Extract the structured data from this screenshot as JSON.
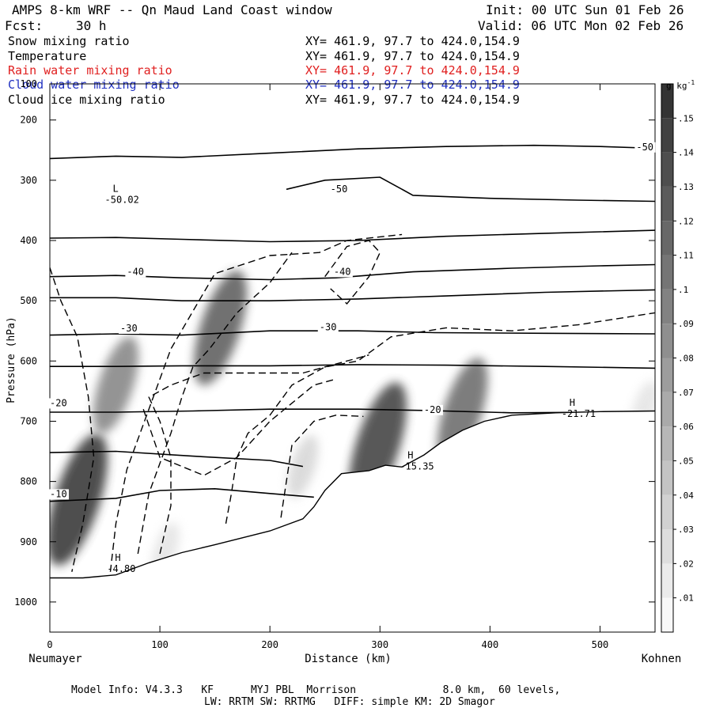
{
  "header": {
    "title": "AMPS 8-km WRF -- Qn Maud Land Coast window",
    "init": "Init: 00 UTC Sun 01 Feb 26",
    "fcst_label": "Fcst:",
    "fcst_value": "30 h",
    "valid": "Valid: 06 UTC Mon 02 Feb 26"
  },
  "fields": [
    {
      "name": "Snow mixing ratio",
      "xy": "XY= 461.9, 97.7 to 424.0,154.9",
      "color": "#000000"
    },
    {
      "name": "Temperature",
      "xy": "XY= 461.9, 97.7 to 424.0,154.9",
      "color": "#000000"
    },
    {
      "name": "Rain water mixing ratio",
      "xy": "XY= 461.9, 97.7 to 424.0,154.9",
      "color": "#e02020"
    },
    {
      "name": "Cloud water mixing ratio",
      "xy": "XY= 461.9, 97.7 to 424.0,154.9",
      "color": "#2030c0"
    },
    {
      "name": "Cloud ice mixing ratio",
      "xy": "XY= 461.9, 97.7 to 424.0,154.9",
      "color": "#000000"
    }
  ],
  "footer": {
    "line1": "Model Info: V4.3.3   KF      MYJ PBL  Morrison              8.0 km,  60 levels,",
    "line2": "LW: RRTM SW: RRTMG   DIFF: simple KM: 2D Smagor"
  },
  "chart_data": {
    "type": "cross-section contour",
    "xlabel": "Distance (km)",
    "ylabel": "Pressure (hPa)",
    "x_left_label": "Neumayer",
    "x_right_label": "Kohnen",
    "xlim": [
      0,
      550
    ],
    "ylim": [
      1050,
      140
    ],
    "x_ticks": [
      0,
      100,
      200,
      300,
      400,
      500
    ],
    "y_ticks": [
      200,
      300,
      400,
      500,
      600,
      700,
      800,
      900,
      1000
    ],
    "colorbar": {
      "unit_label": "g kg",
      "unit_exp": "-1",
      "ticks": [
        ".01",
        ".02",
        ".03",
        ".04",
        ".05",
        ".06",
        ".07",
        ".08",
        ".09",
        ".1",
        ".11",
        ".12",
        ".13",
        ".14",
        ".15"
      ],
      "range": [
        0,
        0.16
      ]
    },
    "temperature_labels": [
      {
        "text": "-50",
        "x": 533,
        "p": 250
      },
      {
        "text": "-50",
        "x": 255,
        "p": 320
      },
      {
        "text": "-40",
        "x": 70,
        "p": 457
      },
      {
        "text": "-40",
        "x": 258,
        "p": 457
      },
      {
        "text": "-30",
        "x": 64,
        "p": 551
      },
      {
        "text": "-30",
        "x": 245,
        "p": 549
      },
      {
        "text": "-20",
        "x": 0,
        "p": 675
      },
      {
        "text": "-20",
        "x": 340,
        "p": 686
      },
      {
        "text": "-10",
        "x": 0,
        "p": 826
      }
    ],
    "extrema": [
      {
        "kind": "L",
        "value": "-50.02",
        "x": 50,
        "p": 330
      },
      {
        "kind": "H",
        "value": "-4.80",
        "x": 52,
        "p": 942
      },
      {
        "kind": "H",
        "value": "-15.35",
        "x": 318,
        "p": 772
      },
      {
        "kind": "H",
        "value": "-21.71",
        "x": 465,
        "p": 685
      }
    ],
    "isotherms": [
      {
        "level": -50,
        "points": [
          [
            0,
            264
          ],
          [
            60,
            260
          ],
          [
            120,
            262
          ],
          [
            200,
            255
          ],
          [
            280,
            248
          ],
          [
            360,
            244
          ],
          [
            440,
            242
          ],
          [
            500,
            244
          ],
          [
            550,
            247
          ]
        ]
      },
      {
        "level": -50,
        "points": [
          [
            215,
            315
          ],
          [
            250,
            300
          ],
          [
            300,
            295
          ],
          [
            330,
            325
          ],
          [
            400,
            330
          ],
          [
            480,
            333
          ],
          [
            550,
            335
          ]
        ]
      },
      {
        "level": -45,
        "points": [
          [
            0,
            396
          ],
          [
            60,
            395
          ],
          [
            120,
            398
          ],
          [
            200,
            402
          ],
          [
            280,
            400
          ],
          [
            360,
            393
          ],
          [
            450,
            388
          ],
          [
            550,
            383
          ]
        ]
      },
      {
        "level": -40,
        "points": [
          [
            0,
            460
          ],
          [
            60,
            458
          ],
          [
            120,
            462
          ],
          [
            200,
            465
          ],
          [
            260,
            462
          ],
          [
            330,
            452
          ],
          [
            420,
            446
          ],
          [
            500,
            442
          ],
          [
            550,
            440
          ]
        ]
      },
      {
        "level": -35,
        "points": [
          [
            0,
            495
          ],
          [
            60,
            495
          ],
          [
            120,
            500
          ],
          [
            200,
            500
          ],
          [
            280,
            497
          ],
          [
            360,
            492
          ],
          [
            450,
            486
          ],
          [
            550,
            482
          ]
        ]
      },
      {
        "level": -30,
        "points": [
          [
            0,
            557
          ],
          [
            60,
            555
          ],
          [
            120,
            557
          ],
          [
            200,
            550
          ],
          [
            280,
            550
          ],
          [
            350,
            553
          ],
          [
            450,
            554
          ],
          [
            550,
            555
          ]
        ]
      },
      {
        "level": -25,
        "points": [
          [
            0,
            609
          ],
          [
            60,
            609
          ],
          [
            120,
            608
          ],
          [
            200,
            608
          ],
          [
            280,
            606
          ],
          [
            360,
            607
          ],
          [
            450,
            609
          ],
          [
            550,
            612
          ]
        ]
      },
      {
        "level": -20,
        "points": [
          [
            0,
            685
          ],
          [
            60,
            685
          ],
          [
            130,
            683
          ],
          [
            200,
            680
          ],
          [
            280,
            680
          ],
          [
            340,
            682
          ],
          [
            420,
            686
          ],
          [
            500,
            685
          ],
          [
            550,
            686
          ]
        ]
      },
      {
        "level": -15,
        "points": [
          [
            0,
            752
          ],
          [
            60,
            750
          ],
          [
            130,
            758
          ],
          [
            200,
            765
          ],
          [
            230,
            775
          ]
        ]
      },
      {
        "level": -10,
        "points": [
          [
            0,
            833
          ],
          [
            60,
            828
          ],
          [
            100,
            815
          ],
          [
            150,
            812
          ],
          [
            200,
            820
          ],
          [
            240,
            826
          ]
        ]
      }
    ],
    "terrain": [
      [
        0,
        960
      ],
      [
        30,
        960
      ],
      [
        60,
        955
      ],
      [
        90,
        935
      ],
      [
        120,
        918
      ],
      [
        150,
        905
      ],
      [
        200,
        882
      ],
      [
        230,
        862
      ],
      [
        240,
        842
      ],
      [
        250,
        815
      ],
      [
        265,
        787
      ],
      [
        290,
        782
      ],
      [
        305,
        773
      ],
      [
        320,
        776
      ],
      [
        340,
        756
      ],
      [
        355,
        736
      ],
      [
        375,
        715
      ],
      [
        395,
        700
      ],
      [
        420,
        690
      ],
      [
        460,
        686
      ],
      [
        500,
        684
      ],
      [
        550,
        683
      ]
    ],
    "snow_maxima": [
      {
        "x": 25,
        "p": 830,
        "value": 0.15
      },
      {
        "x": 60,
        "p": 640,
        "value": 0.09
      },
      {
        "x": 155,
        "p": 545,
        "value": 0.12
      },
      {
        "x": 298,
        "p": 740,
        "value": 0.14
      },
      {
        "x": 375,
        "p": 685,
        "value": 0.11
      },
      {
        "x": 230,
        "p": 775,
        "value": 0.03
      },
      {
        "x": 105,
        "p": 915,
        "value": 0.02
      },
      {
        "x": 540,
        "p": 680,
        "value": 0.02
      }
    ],
    "cloud_ice_contours": [
      {
        "points": [
          [
            0,
            445
          ],
          [
            10,
            500
          ],
          [
            25,
            560
          ],
          [
            35,
            660
          ],
          [
            40,
            760
          ],
          [
            30,
            870
          ],
          [
            20,
            950
          ]
        ]
      },
      {
        "points": [
          [
            55,
            950
          ],
          [
            60,
            870
          ],
          [
            70,
            780
          ],
          [
            90,
            680
          ],
          [
            110,
            580
          ],
          [
            150,
            455
          ],
          [
            200,
            425
          ],
          [
            245,
            420
          ],
          [
            270,
            400
          ],
          [
            320,
            390
          ]
        ]
      },
      {
        "points": [
          [
            80,
            920
          ],
          [
            90,
            820
          ],
          [
            110,
            720
          ],
          [
            120,
            660
          ],
          [
            130,
            610
          ],
          [
            145,
            580
          ],
          [
            170,
            520
          ],
          [
            200,
            470
          ],
          [
            220,
            420
          ]
        ]
      },
      {
        "points": [
          [
            85,
            680
          ],
          [
            100,
            760
          ],
          [
            140,
            790
          ],
          [
            170,
            760
          ],
          [
            200,
            700
          ],
          [
            240,
            640
          ],
          [
            260,
            630
          ]
        ]
      },
      {
        "points": [
          [
            100,
            920
          ],
          [
            110,
            840
          ],
          [
            110,
            760
          ],
          [
            100,
            700
          ],
          [
            90,
            660
          ],
          [
            110,
            640
          ],
          [
            140,
            620
          ],
          [
            180,
            620
          ],
          [
            230,
            620
          ],
          [
            290,
            590
          ]
        ]
      },
      {
        "points": [
          [
            160,
            870
          ],
          [
            165,
            820
          ],
          [
            170,
            760
          ],
          [
            180,
            720
          ],
          [
            200,
            690
          ],
          [
            220,
            640
          ],
          [
            250,
            610
          ],
          [
            280,
            600
          ],
          [
            310,
            560
          ],
          [
            360,
            545
          ],
          [
            420,
            550
          ],
          [
            480,
            540
          ],
          [
            550,
            520
          ]
        ]
      },
      {
        "points": [
          [
            210,
            860
          ],
          [
            215,
            800
          ],
          [
            220,
            740
          ],
          [
            240,
            700
          ],
          [
            260,
            690
          ],
          [
            285,
            692
          ]
        ]
      },
      {
        "points": [
          [
            250,
            460
          ],
          [
            270,
            410
          ],
          [
            290,
            400
          ],
          [
            300,
            420
          ],
          [
            290,
            460
          ],
          [
            270,
            505
          ],
          [
            255,
            480
          ]
        ]
      }
    ]
  }
}
